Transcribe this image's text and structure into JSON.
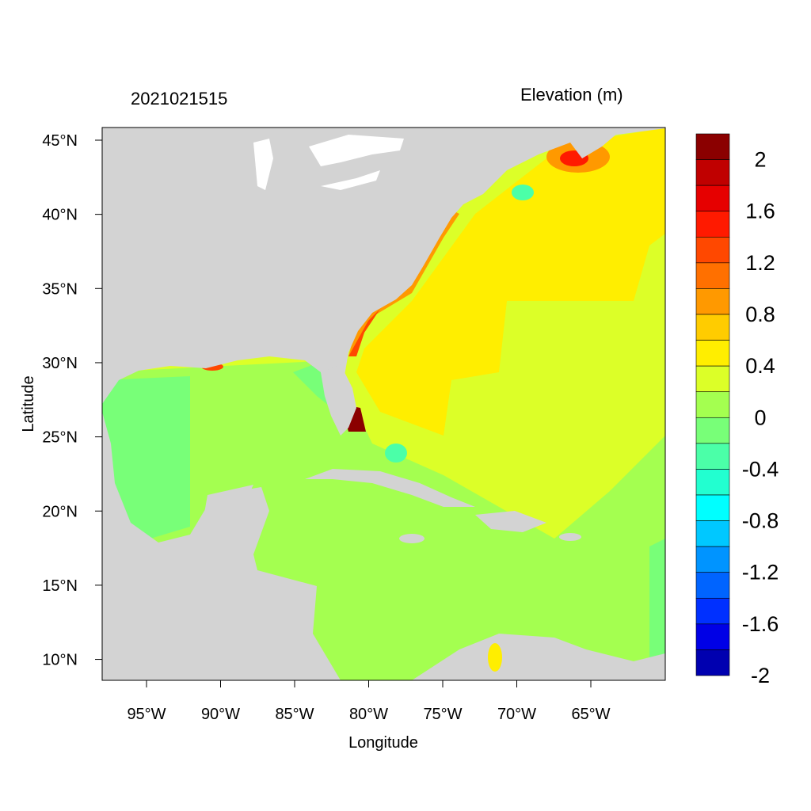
{
  "map": {
    "timestamp": "2021021515",
    "field_title": "Elevation (m)",
    "x_axis_title": "Longitude",
    "y_axis_title": "Latitude",
    "lon_ticks": [
      "95°W",
      "90°W",
      "85°W",
      "80°W",
      "75°W",
      "70°W",
      "65°W"
    ],
    "lat_ticks": [
      "45°N",
      "40°N",
      "35°N",
      "30°N",
      "25°N",
      "20°N",
      "15°N",
      "10°N"
    ],
    "land_color": "#d3d3d3",
    "extent": {
      "lon_min": -98.2,
      "lon_max": -60.2,
      "lat_min": 8.5,
      "lat_max": 45.8
    }
  },
  "colorbar": {
    "colors": [
      "#8b0000",
      "#c00000",
      "#e60000",
      "#ff1a00",
      "#ff4800",
      "#ff7000",
      "#ff9900",
      "#ffcc00",
      "#ffee00",
      "#dcff28",
      "#a4ff50",
      "#78ff78",
      "#4bffa8",
      "#22ffd0",
      "#00ffff",
      "#00c8ff",
      "#0094ff",
      "#0064ff",
      "#0030ff",
      "#0000e6",
      "#0000b0"
    ],
    "labels": [
      "2",
      "1.6",
      "1.2",
      "0.8",
      "0.4",
      "0",
      "-0.4",
      "-0.8",
      "-1.2",
      "-1.6",
      "-2"
    ]
  }
}
